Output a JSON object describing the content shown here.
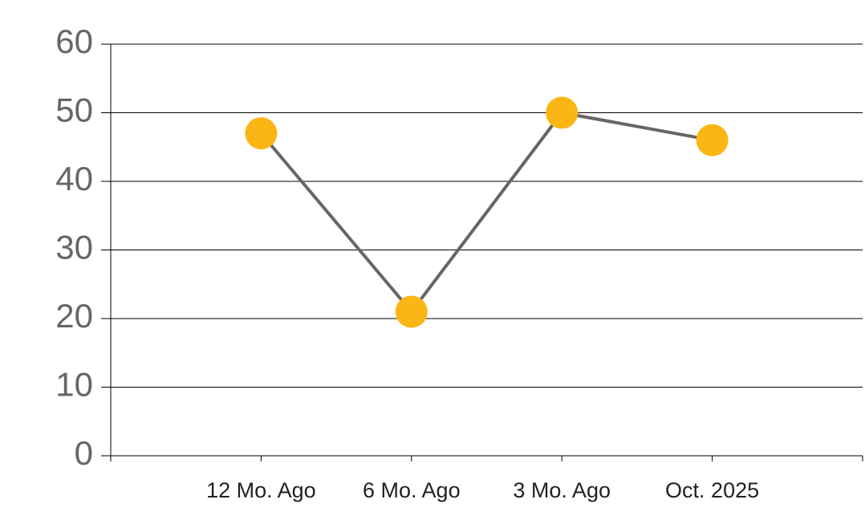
{
  "chart_data": {
    "type": "line",
    "categories": [
      "12 Mo. Ago",
      "6 Mo. Ago",
      "3 Mo. Ago",
      "Oct. 2025"
    ],
    "values": [
      47,
      21,
      50,
      46
    ],
    "color": "#fbb515",
    "line_color": "#666666",
    "ylim": [
      0,
      60
    ],
    "yticks": [
      0,
      10,
      20,
      30,
      40,
      50,
      60
    ],
    "grid": true
  }
}
